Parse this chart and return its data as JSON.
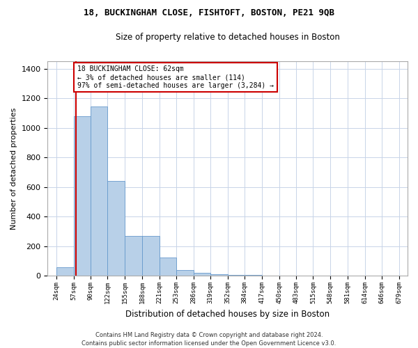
{
  "title": "18, BUCKINGHAM CLOSE, FISHTOFT, BOSTON, PE21 9QB",
  "subtitle": "Size of property relative to detached houses in Boston",
  "xlabel": "Distribution of detached houses by size in Boston",
  "ylabel": "Number of detached properties",
  "bar_color": "#b8d0e8",
  "bar_edge_color": "#6699cc",
  "background_color": "#ffffff",
  "grid_color": "#c8d4e8",
  "annotation_line_color": "#cc0000",
  "annotation_box_color": "#cc0000",
  "annotation_line1": "18 BUCKINGHAM CLOSE: 62sqm",
  "annotation_line2": "← 3% of detached houses are smaller (114)",
  "annotation_line3": "97% of semi-detached houses are larger (3,284) →",
  "property_sqm": 62,
  "footnote_line1": "Contains HM Land Registry data © Crown copyright and database right 2024.",
  "footnote_line2": "Contains public sector information licensed under the Open Government Licence v3.0.",
  "bins": [
    24,
    57,
    90,
    122,
    155,
    188,
    221,
    253,
    286,
    319,
    352,
    384,
    417,
    450,
    483,
    515,
    548,
    581,
    614,
    646,
    679
  ],
  "counts": [
    60,
    1080,
    1145,
    640,
    270,
    270,
    125,
    40,
    18,
    10,
    5,
    5,
    3,
    2,
    3,
    2,
    1,
    1,
    1,
    1
  ],
  "ylim": [
    0,
    1450
  ],
  "yticks": [
    0,
    200,
    400,
    600,
    800,
    1000,
    1200,
    1400
  ]
}
